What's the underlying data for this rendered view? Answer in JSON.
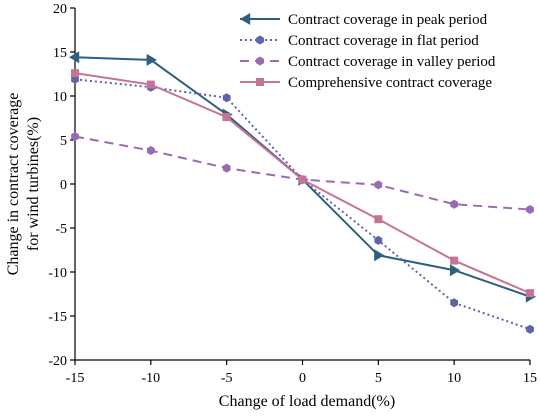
{
  "chart_data": {
    "type": "line",
    "title": "",
    "xlabel": "Change of load demand(%)",
    "ylabel_lines": [
      "Change in contract coverage",
      "for wind turbines(%)"
    ],
    "x": [
      -15,
      -10,
      -5,
      0,
      5,
      10,
      15
    ],
    "xlim": [
      -15,
      15
    ],
    "ylim": [
      -20,
      20
    ],
    "xticks": [
      "-15",
      "-10",
      "-5",
      "0",
      "5",
      "10",
      "15"
    ],
    "yticks": [
      "20",
      "15",
      "10",
      "5",
      "0",
      "-5",
      "-10",
      "-15",
      "-20"
    ],
    "grid": false,
    "legend_position": "top-right",
    "series": [
      {
        "name": "Contract coverage in peak period",
        "color": "#2e5f7f",
        "dash": "solid",
        "marker": "triangle",
        "values": [
          14.4,
          14.1,
          7.9,
          0.5,
          -8.1,
          -9.8,
          -12.8
        ]
      },
      {
        "name": "Contract coverage in flat period",
        "color": "#5d64a8",
        "dash": "dotted",
        "marker": "hexagon",
        "values": [
          11.9,
          11.0,
          9.8,
          0.5,
          -6.4,
          -13.5,
          -16.5
        ]
      },
      {
        "name": "Contract coverage in valley period",
        "color": "#9a6bb3",
        "dash": "dashed",
        "marker": "hexagon",
        "values": [
          5.4,
          3.8,
          1.8,
          0.5,
          -0.1,
          -2.3,
          -2.9
        ]
      },
      {
        "name": "Comprehensive contract coverage",
        "color": "#c57593",
        "dash": "solid",
        "marker": "square",
        "values": [
          12.6,
          11.3,
          7.6,
          0.5,
          -4.0,
          -8.7,
          -12.4
        ]
      }
    ]
  }
}
